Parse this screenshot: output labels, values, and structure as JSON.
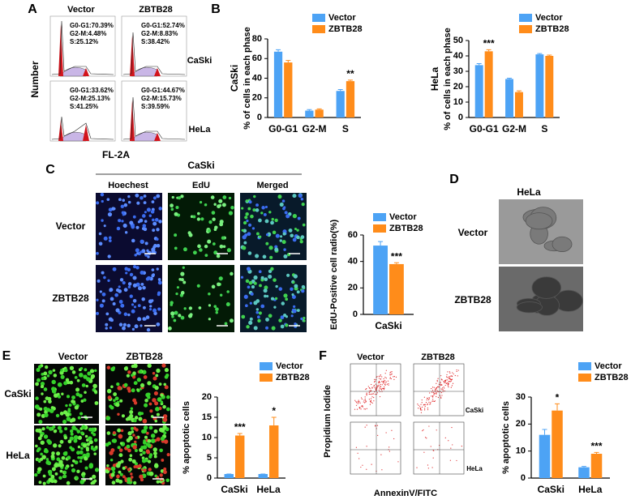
{
  "panels": {
    "a": {
      "letter": "A",
      "columns": [
        "Vector",
        "ZBTB28"
      ],
      "rows": [
        "CaSki",
        "HeLa"
      ],
      "stats": [
        [
          "G0-G1:70.39%",
          "G2-M:4.48%",
          "S:25.12%"
        ],
        [
          "G0-G1:52.74%",
          "G2-M:8.83%",
          "S:38.42%"
        ],
        [
          "G0-G1:33.62%",
          "G2-M:25.13%",
          "S:41.25%"
        ],
        [
          "G0-G1:44.67%",
          "G2-M:15.73%",
          "S:39.59%"
        ]
      ],
      "y_label": "Number",
      "x_label": "FL-2A"
    },
    "b": {
      "letter": "B"
    },
    "c": {
      "letter": "C",
      "title": "CaSki",
      "columns": [
        "Hoechest",
        "EdU",
        "Merged"
      ],
      "rows": [
        "Vector",
        "ZBTB28"
      ]
    },
    "d": {
      "letter": "D",
      "title": "HeLa",
      "rows": [
        "Vector",
        "ZBTB28"
      ]
    },
    "e": {
      "letter": "E",
      "columns": [
        "Vector",
        "ZBTB28"
      ],
      "rows": [
        "CaSki",
        "HeLa"
      ]
    },
    "f": {
      "letter": "F",
      "columns": [
        "Vector",
        "ZBTB28"
      ],
      "rows": [
        "CaSki",
        "HeLa"
      ],
      "y_label": "Propidium Iodide",
      "x_label": "AnnexinV/FITC"
    }
  },
  "chart_data": [
    {
      "type": "bar",
      "title": "CaSki",
      "y_label": "% of cells in each phase",
      "categories": [
        "G0-G1",
        "G2-M",
        "S"
      ],
      "series": [
        {
          "name": "Vector",
          "color": "#4da3f5",
          "values": [
            67,
            7,
            27
          ],
          "errors": [
            2,
            1,
            1.5
          ]
        },
        {
          "name": "ZBTB28",
          "color": "#ff8c1a",
          "values": [
            56,
            8,
            37
          ],
          "errors": [
            2,
            0.8,
            1
          ]
        }
      ],
      "significance": [
        null,
        null,
        "**"
      ],
      "ylim": [
        0,
        80
      ],
      "yticks": [
        0,
        20,
        40,
        60,
        80
      ]
    },
    {
      "type": "bar",
      "title": "HeLa",
      "y_label": "% of cells in each phase",
      "categories": [
        "G0-G1",
        "G2-M",
        "S"
      ],
      "series": [
        {
          "name": "Vector",
          "color": "#4da3f5",
          "values": [
            34,
            25,
            41
          ],
          "errors": [
            1,
            0.5,
            0.5
          ]
        },
        {
          "name": "ZBTB28",
          "color": "#ff8c1a",
          "values": [
            43,
            16.5,
            40
          ],
          "errors": [
            1,
            0.8,
            0.5
          ]
        }
      ],
      "significance": [
        "***",
        null,
        null
      ],
      "ylim": [
        0,
        50
      ],
      "yticks": [
        0,
        10,
        20,
        30,
        40,
        50
      ]
    },
    {
      "type": "bar",
      "y_label": "EdU-Positive cell radio(%)",
      "categories": [
        "CaSki"
      ],
      "series": [
        {
          "name": "Vector",
          "color": "#4da3f5",
          "values": [
            52
          ],
          "errors": [
            3
          ]
        },
        {
          "name": "ZBTB28",
          "color": "#ff8c1a",
          "values": [
            38
          ],
          "errors": [
            1
          ]
        }
      ],
      "significance": [
        "***"
      ],
      "ylim": [
        0,
        60
      ],
      "yticks": [
        0,
        20,
        40,
        60
      ]
    },
    {
      "type": "bar",
      "y_label": "% apoptotic cells",
      "categories": [
        "CaSki",
        "HeLa"
      ],
      "series": [
        {
          "name": "Vector",
          "color": "#4da3f5",
          "values": [
            1,
            1
          ],
          "errors": [
            0,
            0
          ]
        },
        {
          "name": "ZBTB28",
          "color": "#ff8c1a",
          "values": [
            10.5,
            13
          ],
          "errors": [
            0.5,
            2
          ]
        }
      ],
      "significance": [
        "***",
        "*"
      ],
      "ylim": [
        0,
        20
      ],
      "yticks": [
        0,
        5,
        10,
        15,
        20
      ]
    },
    {
      "type": "bar",
      "y_label": "% apoptotic cells",
      "categories": [
        "CaSki",
        "HeLa"
      ],
      "series": [
        {
          "name": "Vector",
          "color": "#4da3f5",
          "values": [
            16,
            4
          ],
          "errors": [
            2,
            0.3
          ]
        },
        {
          "name": "ZBTB28",
          "color": "#ff8c1a",
          "values": [
            25,
            9
          ],
          "errors": [
            2.5,
            0.5
          ]
        }
      ],
      "significance": [
        "*",
        "***"
      ],
      "ylim": [
        0,
        30
      ],
      "yticks": [
        0,
        10,
        20,
        30
      ]
    }
  ]
}
